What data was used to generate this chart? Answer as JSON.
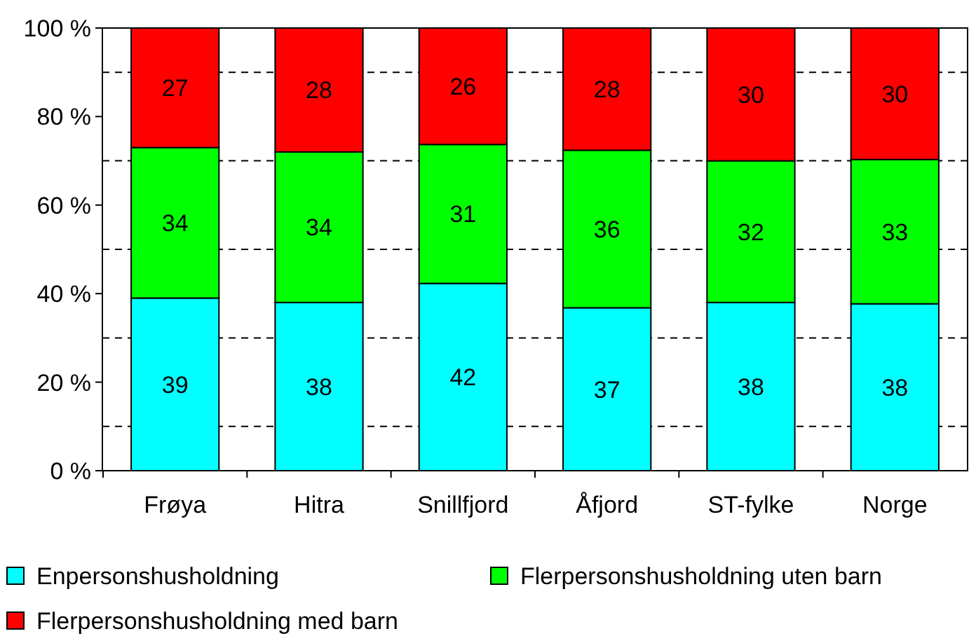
{
  "chart_data": {
    "type": "bar",
    "stacked": true,
    "categories": [
      "Frøya",
      "Hitra",
      "Snillfjord",
      "Åfjord",
      "ST-fylke",
      "Norge"
    ],
    "series": [
      {
        "name": "Enpersonshusholdning",
        "color": "#00ffff",
        "values": [
          39,
          38,
          42.3,
          36.8,
          38,
          37.7
        ],
        "value_labels": [
          "39",
          "38",
          "42",
          "37",
          "38",
          "38"
        ]
      },
      {
        "name": "Flerpersonshusholdning uten barn",
        "color": "#00ff00",
        "values": [
          34,
          34,
          31.4,
          35.6,
          32,
          32.6
        ],
        "value_labels": [
          "34",
          "34",
          "31",
          "36",
          "32",
          "33"
        ]
      },
      {
        "name": "Flerpersonshusholdning med barn",
        "color": "#ff0000",
        "values": [
          27,
          28,
          26.3,
          27.6,
          30,
          29.7
        ],
        "value_labels": [
          "27",
          "28",
          "26",
          "28",
          "30",
          "30"
        ]
      }
    ],
    "ylim": [
      0,
      100
    ],
    "yticks": [
      {
        "value": 0,
        "label": "0 %"
      },
      {
        "value": 20,
        "label": "20 %"
      },
      {
        "value": 40,
        "label": "40 %"
      },
      {
        "value": 60,
        "label": "60 %"
      },
      {
        "value": 80,
        "label": "80 %"
      },
      {
        "value": 100,
        "label": "100 %"
      }
    ],
    "ref_lines": [
      {
        "axis": "y",
        "value": 10,
        "line_style": "dashed"
      },
      {
        "axis": "y",
        "value": 30,
        "line_style": "dashed"
      },
      {
        "axis": "y",
        "value": 50,
        "line_style": "dashed"
      },
      {
        "axis": "y",
        "value": 70,
        "line_style": "dashed"
      },
      {
        "axis": "y",
        "value": 90,
        "line_style": "dashed"
      }
    ],
    "legend": "bottom"
  }
}
